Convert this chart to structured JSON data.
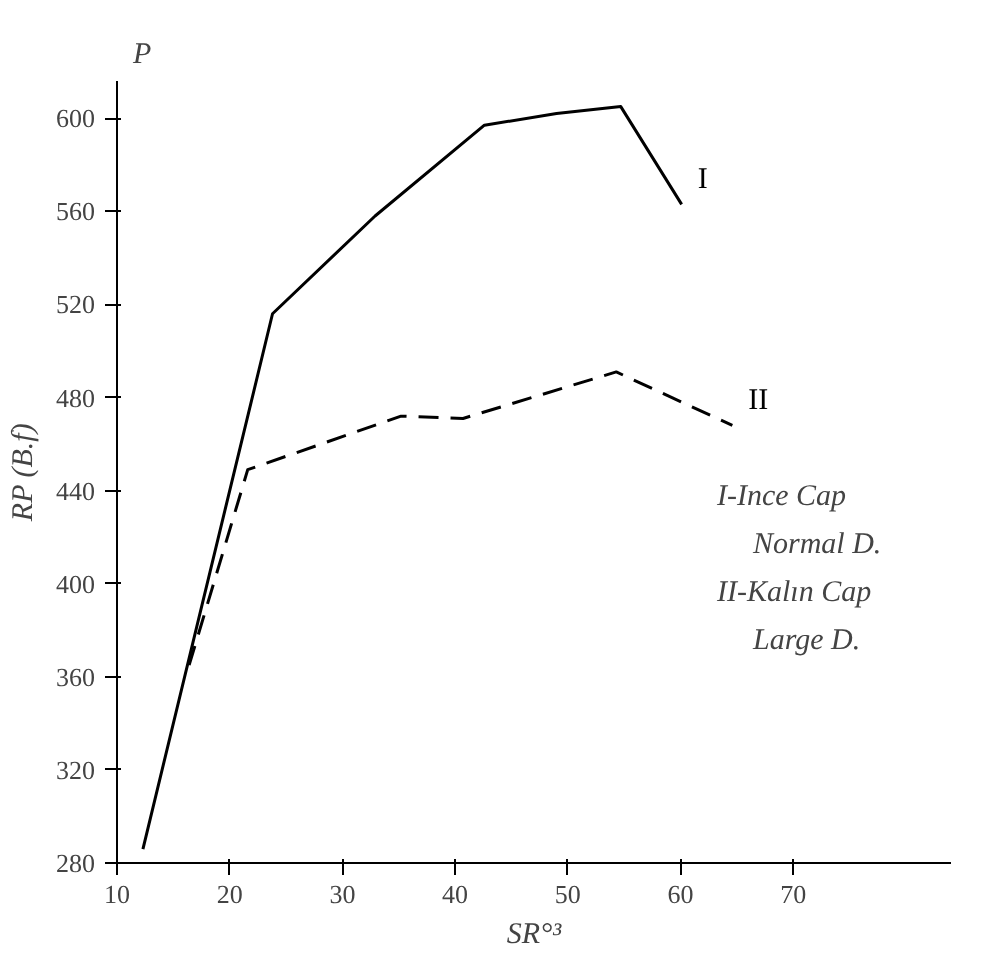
{
  "chart_data": {
    "type": "line",
    "xlabel": "SR°³",
    "ylabel": "RP (B.f)",
    "annotations": [
      "P",
      "I-Ince Cap",
      "Normal D.",
      "II-Kalın Cap",
      "Large D."
    ],
    "series": [
      {
        "name": "I",
        "color": "#000000",
        "line_style": "solid",
        "x": [
          12.3,
          23.8,
          32.9,
          42.6,
          49,
          54.7,
          60.1
        ],
        "values": [
          286,
          516,
          558,
          597,
          602,
          605,
          563
        ]
      },
      {
        "name": "II",
        "color": "#000000",
        "line_style": "dashed",
        "x": [
          16.4,
          21.6,
          35.2,
          40.7,
          54.3,
          64.6
        ],
        "values": [
          365,
          449,
          472,
          471,
          491,
          468
        ]
      }
    ],
    "xlim": [
      10,
      84
    ],
    "ylim": [
      280,
      616
    ],
    "xticks": [
      10,
      20,
      30,
      40,
      50,
      60,
      70
    ],
    "yticks": [
      280,
      320,
      360,
      400,
      440,
      480,
      520,
      560,
      600
    ],
    "grid": false,
    "marker": "none"
  }
}
